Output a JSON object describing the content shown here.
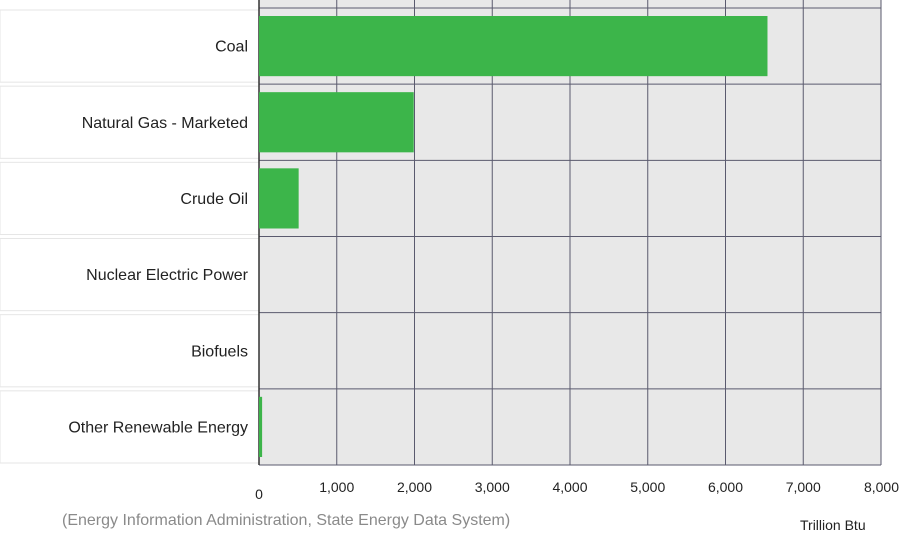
{
  "chart_data": {
    "type": "bar",
    "orientation": "horizontal",
    "categories": [
      "Coal",
      "Natural Gas - Marketed",
      "Crude Oil",
      "Nuclear Electric Power",
      "Biofuels",
      "Other Renewable Energy"
    ],
    "values": [
      6540,
      1990,
      510,
      0,
      0,
      40
    ],
    "xlim": [
      0,
      8000
    ],
    "xticks": [
      0,
      1000,
      2000,
      3000,
      4000,
      5000,
      6000,
      7000,
      8000
    ],
    "xtick_labels": [
      "0",
      "1,000",
      "2,000",
      "3,000",
      "4,000",
      "5,000",
      "6,000",
      "7,000",
      "8,000"
    ],
    "xlabel": "Trillion Btu",
    "grid": true,
    "bar_color": "#3cb54a",
    "plot_background": "#e8e8e8",
    "gridline_color": "#5a5a6e"
  },
  "source_note": "(Energy Information Administration, State Energy Data System)"
}
